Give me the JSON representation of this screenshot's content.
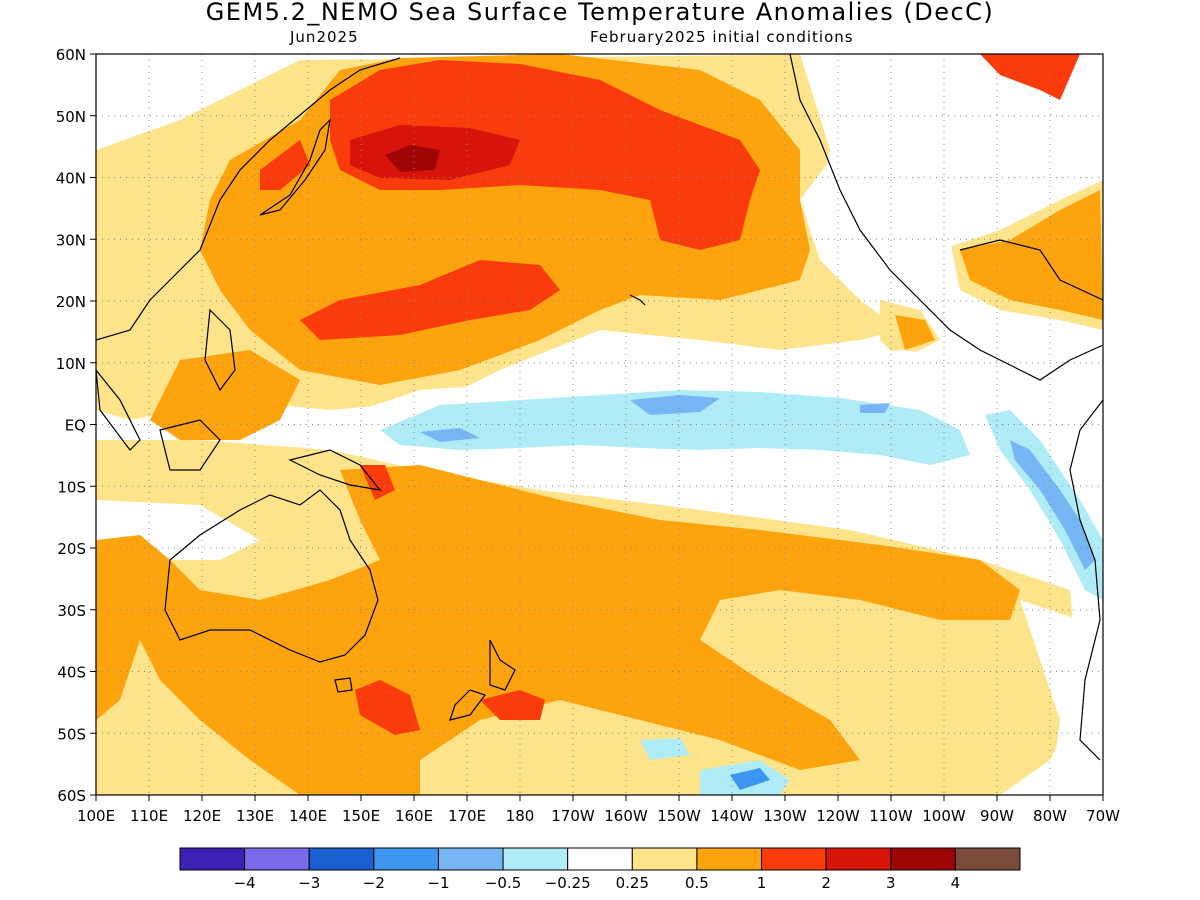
{
  "title": "GEM5.2_NEMO Sea Surface Temperature Anomalies (DecC)",
  "subtitle_left": "Jun2025",
  "subtitle_right": "February2025 initial conditions",
  "lat_labels": [
    "60N",
    "50N",
    "40N",
    "30N",
    "20N",
    "10N",
    "EQ",
    "10S",
    "20S",
    "30S",
    "40S",
    "50S",
    "60S"
  ],
  "lon_labels": [
    "100E",
    "110E",
    "120E",
    "130E",
    "140E",
    "150E",
    "160E",
    "170E",
    "180",
    "170W",
    "160W",
    "150W",
    "140W",
    "130W",
    "120W",
    "110W",
    "100W",
    "90W",
    "80W",
    "70W"
  ],
  "colorbar": {
    "colors": [
      "#3c1fb4",
      "#7b6bea",
      "#1a5fd0",
      "#3d96f0",
      "#76b6f4",
      "#b0ecf6",
      "#ffffff",
      "#fde38a",
      "#fca30e",
      "#fa3c0c",
      "#d8140a",
      "#a00505",
      "#7a4b3a"
    ],
    "labels": [
      "−4",
      "−3",
      "−2",
      "−1",
      "−0.5",
      "−0.25",
      "0.25",
      "0.5",
      "1",
      "2",
      "3",
      "4"
    ]
  },
  "palette": {
    "white": "#ffffff",
    "cyan": "#b0ecf6",
    "lightblue": "#76b6f4",
    "blue": "#3d96f0",
    "yellow": "#fde38a",
    "orange": "#fca30e",
    "redorange": "#fa3c0c",
    "red": "#d8140a",
    "darkred": "#a00505"
  }
}
